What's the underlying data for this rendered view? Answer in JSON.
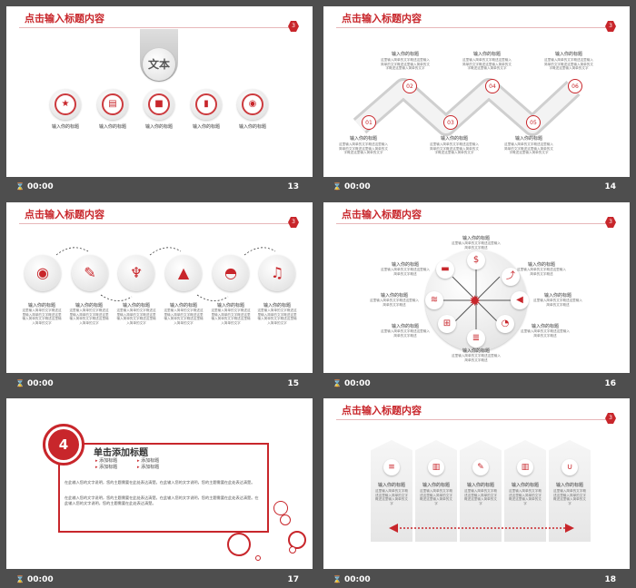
{
  "slides": {
    "s13": {
      "title": "点击输入标题内容",
      "page": "3",
      "center_label": "文本",
      "items": [
        {
          "label": "输入你的标题",
          "icon": "star-icon"
        },
        {
          "label": "输入你的标题",
          "icon": "card-icon"
        },
        {
          "label": "输入你的标题",
          "icon": "cube-icon"
        },
        {
          "label": "输入你的标题",
          "icon": "phone-icon"
        },
        {
          "label": "输入你的标题",
          "icon": "eye-icon"
        }
      ],
      "time": "00:00",
      "number": "13"
    },
    "s14": {
      "title": "点击输入标题内容",
      "page": "3",
      "badges": [
        "01",
        "02",
        "03",
        "04",
        "05",
        "06"
      ],
      "label": "输入你的标题",
      "text": "这里输入简单的文字概述这里输入简单的文字概述这里输入简单的文字概述这里输入简单的文字",
      "time": "00:00",
      "number": "14"
    },
    "s15": {
      "title": "点击输入标题内容",
      "page": "3",
      "label": "输入你的标题",
      "text": "这里输入简单的文字概述这里输入简单的文字概述这里输入简单的文字概述这里输入简单的文字",
      "time": "00:00",
      "number": "15"
    },
    "s16": {
      "title": "点击输入标题内容",
      "page": "3",
      "label": "输入你的标题",
      "text": "这里输入简单的文字概述这里输入简单的文字概述",
      "time": "00:00",
      "number": "16"
    },
    "s17": {
      "big_number": "4",
      "heading": "单击添加标题",
      "bullets": [
        "添加标题",
        "添加标题",
        "添加标题",
        "添加标题"
      ],
      "para1": "在此输入您的文字说明，您的主题需要在此处表达清楚。在此输入您的文字说明，您的主题需要在此处表达清楚。",
      "para2": "在此输入您的文字说明，您的主题需要在此处表达清楚。在此输入您的文字说明，您的主题需要在此处表达清楚。在此输入您的文字说明，您的主题需要在此处表达清楚。",
      "time": "00:00",
      "number": "17"
    },
    "s18": {
      "title": "点击输入标题内容",
      "page": "3",
      "label": "输入你的标题",
      "text": "这里输入简单的文字概述这里输入简单的文字概述这里输入简单的文字",
      "time": "00:00",
      "number": "18"
    }
  },
  "colors": {
    "accent": "#c8262b",
    "background": "#4e4e4e"
  }
}
